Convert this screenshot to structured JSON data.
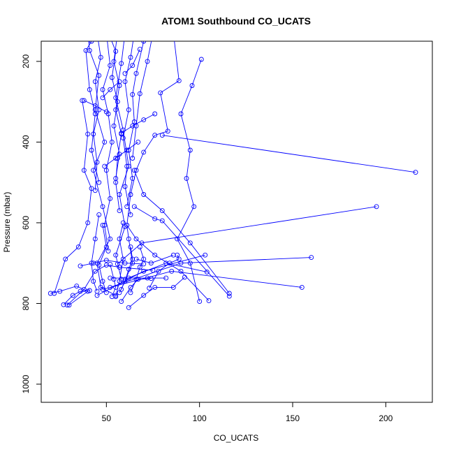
{
  "chart_data": {
    "type": "line",
    "title": "ATOM1 Southbound CO_UCATS",
    "xlabel": "CO_UCATS",
    "ylabel": "Pressure (mbar)",
    "xlim": [
      15,
      225
    ],
    "ylim": [
      1045,
      150
    ],
    "y_inverted": true,
    "x_ticks": [
      50,
      100,
      150,
      200
    ],
    "y_ticks": [
      200,
      400,
      600,
      800,
      1000
    ],
    "x_tick_labels": [
      "50",
      "100",
      "150",
      "200"
    ],
    "y_tick_labels": [
      "200",
      "400",
      "600",
      "800",
      "1000"
    ],
    "series_color": "#0000ff",
    "marker": "open-circle",
    "grid": false,
    "legend": "none",
    "series": [
      {
        "points": [
          [
            40,
            130
          ],
          [
            41,
            173
          ],
          [
            46,
            235
          ],
          [
            44,
            320
          ],
          [
            49,
            400
          ],
          [
            43,
            470
          ],
          [
            48,
            560
          ],
          [
            52,
            640
          ],
          [
            45,
            700
          ],
          [
            47,
            760
          ],
          [
            55,
            780
          ]
        ]
      },
      {
        "points": [
          [
            60,
            130
          ],
          [
            58,
            205
          ],
          [
            55,
            290
          ],
          [
            59,
            370
          ],
          [
            62,
            460
          ],
          [
            57,
            530
          ],
          [
            60,
            610
          ],
          [
            55,
            680
          ],
          [
            58,
            740
          ]
        ]
      },
      {
        "points": [
          [
            101,
            195
          ],
          [
            96,
            260
          ],
          [
            90,
            330
          ],
          [
            95,
            420
          ],
          [
            93,
            490
          ],
          [
            97,
            560
          ],
          [
            88,
            640
          ],
          [
            95,
            700
          ],
          [
            100,
            795
          ]
        ]
      },
      {
        "points": [
          [
            86,
            130
          ],
          [
            89,
            248
          ],
          [
            79,
            278
          ],
          [
            83,
            373
          ],
          [
            76,
            383
          ],
          [
            70,
            425
          ],
          [
            66,
            470
          ],
          [
            63,
            530
          ],
          [
            61,
            606
          ],
          [
            62,
            640
          ],
          [
            64,
            700
          ],
          [
            58,
            765
          ]
        ]
      },
      {
        "points": [
          [
            216,
            475
          ],
          [
            80,
            383
          ]
        ]
      },
      {
        "points": [
          [
            195,
            560
          ],
          [
            69,
            650
          ],
          [
            56,
            702
          ]
        ]
      },
      {
        "points": [
          [
            116,
            782
          ],
          [
            80,
            595
          ],
          [
            76,
            590
          ],
          [
            65,
            560
          ]
        ]
      },
      {
        "points": [
          [
            160,
            686
          ],
          [
            90,
            700
          ],
          [
            52,
            760
          ]
        ]
      },
      {
        "points": [
          [
            155,
            760
          ],
          [
            85,
            720
          ],
          [
            48,
            765
          ]
        ]
      },
      {
        "points": [
          [
            103,
            680
          ],
          [
            70,
            720
          ],
          [
            45,
            780
          ]
        ]
      },
      {
        "points": [
          [
            104,
            722
          ],
          [
            82,
            700
          ],
          [
            60,
            740
          ]
        ]
      },
      {
        "points": [
          [
            116,
            775
          ],
          [
            95,
            650
          ],
          [
            80,
            570
          ],
          [
            70,
            530
          ],
          [
            65,
            470
          ]
        ]
      },
      {
        "points": [
          [
            105,
            793
          ],
          [
            90,
            720
          ],
          [
            76,
            680
          ],
          [
            66,
            640
          ],
          [
            61,
            606
          ]
        ]
      },
      {
        "points": [
          [
            22,
            775
          ],
          [
            28,
            690
          ],
          [
            35,
            660
          ],
          [
            40,
            600
          ],
          [
            42,
            515
          ],
          [
            38,
            470
          ],
          [
            40,
            380
          ],
          [
            37,
            297
          ]
        ]
      },
      {
        "points": [
          [
            20,
            775
          ],
          [
            25,
            770
          ],
          [
            34,
            757
          ],
          [
            40,
            770
          ],
          [
            30,
            804
          ]
        ]
      },
      {
        "points": [
          [
            29,
            804
          ],
          [
            38,
            765
          ],
          [
            44,
            720
          ],
          [
            50,
            705
          ],
          [
            57,
            710
          ],
          [
            75,
            718
          ]
        ]
      },
      {
        "points": [
          [
            27,
            803
          ],
          [
            32,
            780
          ],
          [
            36,
            770
          ],
          [
            41,
            768
          ]
        ]
      },
      {
        "points": [
          [
            62,
            810
          ],
          [
            70,
            780
          ],
          [
            76,
            760
          ],
          [
            86,
            760
          ],
          [
            92,
            735
          ]
        ]
      },
      {
        "points": [
          [
            58,
            795
          ],
          [
            63,
            760
          ],
          [
            67,
            740
          ],
          [
            74,
            738
          ]
        ]
      },
      {
        "points": [
          [
            53,
            783
          ],
          [
            55,
            760
          ],
          [
            54,
            740
          ],
          [
            52,
            703
          ]
        ]
      },
      {
        "points": [
          [
            55,
            783
          ],
          [
            57,
            745
          ],
          [
            59,
            690
          ],
          [
            57,
            640
          ],
          [
            59,
            600
          ]
        ]
      },
      {
        "points": [
          [
            50,
            773
          ],
          [
            48,
            745
          ],
          [
            46,
            705
          ],
          [
            50,
            660
          ],
          [
            48,
            606
          ]
        ]
      },
      {
        "points": [
          [
            45,
            770
          ],
          [
            43,
            745
          ],
          [
            42,
            700
          ],
          [
            44,
            640
          ],
          [
            46,
            580
          ]
        ]
      },
      {
        "points": [
          [
            63,
            773
          ],
          [
            66,
            740
          ],
          [
            68,
            710
          ],
          [
            70,
            690
          ],
          [
            68,
            660
          ]
        ]
      },
      {
        "points": [
          [
            57,
            773
          ],
          [
            60,
            745
          ],
          [
            62,
            715
          ],
          [
            64,
            690
          ],
          [
            63,
            660
          ]
        ]
      },
      {
        "points": [
          [
            73,
            762
          ],
          [
            78,
            720
          ],
          [
            84,
            700
          ],
          [
            89,
            690
          ],
          [
            88,
            680
          ]
        ]
      },
      {
        "points": [
          [
            52,
            737
          ],
          [
            62,
            737
          ],
          [
            72,
            737
          ],
          [
            82,
            737
          ]
        ]
      },
      {
        "points": [
          [
            36,
            707
          ],
          [
            43,
            700
          ],
          [
            50,
            693
          ],
          [
            60,
            700
          ],
          [
            70,
            702
          ]
        ]
      },
      {
        "points": [
          [
            66,
            690
          ],
          [
            74,
            700
          ],
          [
            86,
            680
          ]
        ]
      },
      {
        "points": [
          [
            50,
            130
          ],
          [
            52,
            210
          ],
          [
            48,
            270
          ],
          [
            51,
            330
          ],
          [
            53,
            400
          ],
          [
            50,
            470
          ],
          [
            52,
            540
          ],
          [
            49,
            606
          ],
          [
            51,
            670
          ]
        ]
      },
      {
        "points": [
          [
            56,
            130
          ],
          [
            54,
            200
          ],
          [
            57,
            260
          ],
          [
            55,
            320
          ],
          [
            58,
            380
          ],
          [
            56,
            440
          ],
          [
            55,
            500
          ],
          [
            57,
            570
          ]
        ]
      },
      {
        "points": [
          [
            65,
            130
          ],
          [
            63,
            190
          ],
          [
            60,
            250
          ],
          [
            62,
            320
          ],
          [
            59,
            390
          ],
          [
            61,
            460
          ],
          [
            60,
            510
          ],
          [
            63,
            580
          ]
        ]
      },
      {
        "points": [
          [
            70,
            150
          ],
          [
            66,
            230
          ],
          [
            64,
            282
          ],
          [
            65,
            350
          ],
          [
            62,
            420
          ],
          [
            64,
            490
          ],
          [
            61,
            560
          ]
        ]
      },
      {
        "points": [
          [
            45,
            130
          ],
          [
            47,
            190
          ],
          [
            44,
            250
          ],
          [
            46,
            320
          ],
          [
            43,
            380
          ],
          [
            45,
            450
          ],
          [
            44,
            520
          ]
        ]
      },
      {
        "points": [
          [
            52,
            140
          ],
          [
            55,
            175
          ],
          [
            53,
            240
          ],
          [
            56,
            300
          ],
          [
            54,
            360
          ],
          [
            57,
            430
          ],
          [
            55,
            490
          ]
        ]
      },
      {
        "points": [
          [
            42,
            150
          ],
          [
            39,
            173
          ],
          [
            41,
            270
          ],
          [
            44,
            330
          ],
          [
            42,
            420
          ],
          [
            46,
            500
          ]
        ]
      },
      {
        "points": [
          [
            75,
            130
          ],
          [
            72,
            200
          ],
          [
            68,
            280
          ],
          [
            66,
            360
          ],
          [
            64,
            440
          ]
        ]
      },
      {
        "points": [
          [
            60,
            230
          ],
          [
            64,
            210
          ],
          [
            68,
            170
          ]
        ]
      },
      {
        "points": [
          [
            48,
            290
          ],
          [
            52,
            270
          ],
          [
            57,
            250
          ]
        ]
      },
      {
        "points": [
          [
            38,
            297
          ],
          [
            44,
            310
          ],
          [
            50,
            325
          ]
        ]
      },
      {
        "points": [
          [
            76,
            330
          ],
          [
            70,
            345
          ],
          [
            64,
            360
          ],
          [
            58,
            378
          ]
        ]
      },
      {
        "points": [
          [
            67,
            400
          ],
          [
            61,
            420
          ],
          [
            55,
            440
          ],
          [
            49,
            460
          ]
        ]
      }
    ]
  }
}
